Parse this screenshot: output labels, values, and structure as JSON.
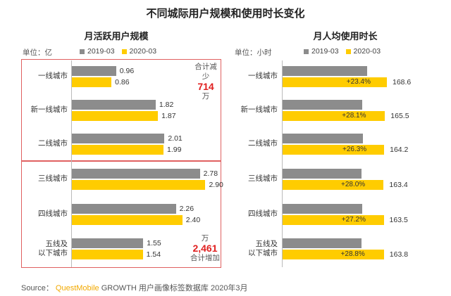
{
  "title": "不同城际用户规模和使用时长变化",
  "source": {
    "label": "Source：",
    "brand": "QuestMobile",
    "rest": "GROWTH 用户画像标签数据库 2020年3月"
  },
  "colors": {
    "series2019": "#8c8c8c",
    "series2020": "#ffcc00",
    "highlight": "#e02020",
    "box": "#e06060"
  },
  "chart_data": [
    {
      "type": "bar",
      "title": "月活跃用户规模",
      "unit": "单位：亿",
      "categories": [
        "一线城市",
        "新一线城市",
        "二线城市",
        "三线城市",
        "四线城市",
        "五线及\n以下城市"
      ],
      "series": [
        {
          "name": "2019-03",
          "values": [
            0.96,
            1.82,
            2.01,
            2.78,
            2.26,
            1.55
          ]
        },
        {
          "name": "2020-03",
          "values": [
            0.86,
            1.87,
            1.99,
            2.9,
            2.4,
            1.54
          ]
        }
      ],
      "annotations": [
        {
          "group": "一线至二线城市",
          "lines": [
            "合计减少",
            "714",
            "万"
          ]
        },
        {
          "group": "三线及以下城市",
          "lines": [
            "万",
            "2,461",
            "合计增加"
          ]
        }
      ]
    },
    {
      "type": "bar",
      "title": "月人均使用时长",
      "unit": "单位：小时",
      "categories": [
        "一线城市",
        "新一线城市",
        "二线城市",
        "三线城市",
        "四线城市",
        "五线及\n以下城市"
      ],
      "series": [
        {
          "name": "2019-03",
          "values": [
            136.6,
            129.2,
            130.0,
            127.7,
            128.6,
            127.2
          ]
        },
        {
          "name": "2020-03",
          "values": [
            168.6,
            165.5,
            164.2,
            163.4,
            163.5,
            163.8
          ]
        }
      ],
      "growth_labels": [
        "+23.4%",
        "+28.1%",
        "+26.3%",
        "+28.0%",
        "+27.2%",
        "+28.8%"
      ]
    }
  ]
}
